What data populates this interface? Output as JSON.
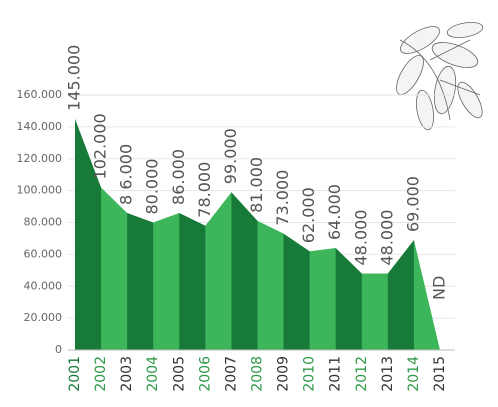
{
  "chart_data": {
    "type": "area",
    "categories": [
      "2001",
      "2002",
      "2003",
      "2004",
      "2005",
      "2006",
      "2007",
      "2008",
      "2009",
      "2010",
      "2011",
      "2012",
      "2013",
      "2014",
      "2015"
    ],
    "values": [
      145000,
      102000,
      86000,
      80000,
      86000,
      78000,
      99000,
      81000,
      73000,
      62000,
      64000,
      48000,
      48000,
      69000,
      null
    ],
    "value_labels": [
      "145.000",
      "102.000",
      "8 6.000",
      "80.000",
      "86.000",
      "78.000",
      "99.000",
      "81.000",
      "73.000",
      "62.000",
      "64.000",
      "48.000",
      "48.000",
      "69.000",
      "ND"
    ],
    "colors": [
      "#177a39",
      "#3db55a"
    ],
    "ylim": [
      0,
      160000
    ],
    "yticks": [
      0,
      {
        "value": 20000,
        "label": "20.000"
      },
      {
        "value": 40000,
        "label": "40.000"
      },
      {
        "value": 60000,
        "label": "60.000"
      },
      {
        "value": 80000,
        "label": "80.000"
      },
      {
        "value": 100000,
        "label": "100.000"
      },
      {
        "value": 120000,
        "label": "120.000"
      },
      {
        "value": 140000,
        "label": "140.000"
      },
      {
        "value": 160000,
        "label": "160.000"
      }
    ],
    "grid": true
  }
}
